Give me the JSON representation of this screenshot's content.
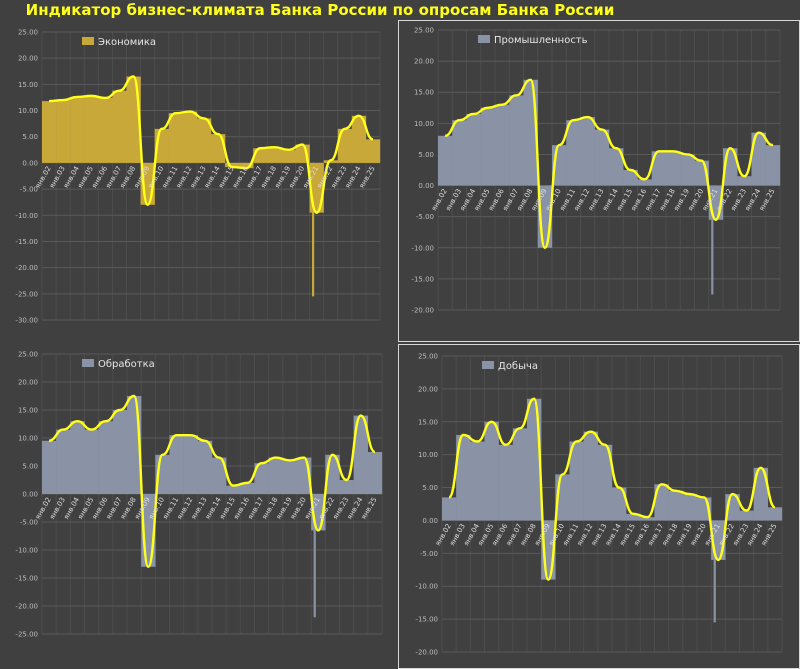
{
  "title": "Индикатор бизнес-климата Банка России по опросам Банка России",
  "colors": {
    "smooth": "#ffff1a",
    "axis_text": "#bcbcbc",
    "background": "#404040"
  },
  "chart_data": [
    {
      "type": "bar",
      "legend": "Экономика",
      "bar_color": "#c9a83a",
      "ylim": [
        -30,
        25
      ],
      "ytick_labels": [
        "25.00",
        "20.00",
        "15.00",
        "10.00",
        "5.00",
        "0.00",
        "-5.00",
        "-10.00",
        "-15.00",
        "-20.00",
        "-25.00",
        "-30.00"
      ],
      "categories": [
        "янв.02",
        "янв.03",
        "янв.04",
        "янв.05",
        "янв.06",
        "янв.07",
        "янв.08",
        "янв.09",
        "янв.10",
        "янв.11",
        "янв.12",
        "янв.13",
        "янв.14",
        "янв.15",
        "янв.16",
        "янв.17",
        "янв.18",
        "янв.19",
        "янв.20",
        "янв.21",
        "янв.22",
        "янв.23",
        "янв.24",
        "янв.25"
      ],
      "series": [
        {
          "name": "Экономика",
          "values": [
            11.8,
            12.0,
            12.6,
            12.8,
            12.4,
            13.8,
            16.5,
            -8.0,
            6.5,
            9.5,
            9.8,
            8.5,
            5.5,
            -0.8,
            -1.0,
            2.8,
            3.0,
            2.5,
            3.5,
            -9.5,
            0.5,
            6.5,
            9.0,
            4.5
          ]
        }
      ],
      "markers": [
        {
          "x": "янв.21",
          "value": -25.5
        }
      ]
    },
    {
      "type": "bar",
      "legend": "Промышленность",
      "bar_color": "#8a93a6",
      "ylim": [
        -20,
        25
      ],
      "ytick_labels": [
        "25.00",
        "20.00",
        "15.00",
        "10.00",
        "5.00",
        "0.00",
        "-5.00",
        "-10.00",
        "-15.00",
        "-20.00"
      ],
      "categories": [
        "янв.02",
        "янв.03",
        "янв.04",
        "янв.05",
        "янв.06",
        "янв.07",
        "янв.08",
        "янв.09",
        "янв.10",
        "янв.11",
        "янв.12",
        "янв.13",
        "янв.14",
        "янв.15",
        "янв.16",
        "янв.17",
        "янв.18",
        "янв.19",
        "янв.20",
        "янв.21",
        "янв.22",
        "янв.23",
        "янв.24",
        "янв.25"
      ],
      "series": [
        {
          "name": "Промышленность",
          "values": [
            8.0,
            10.5,
            11.5,
            12.5,
            13.0,
            14.5,
            17.0,
            -10.0,
            6.5,
            10.5,
            11.0,
            9.0,
            6.0,
            2.5,
            1.0,
            5.5,
            5.5,
            5.0,
            4.0,
            -5.5,
            6.0,
            1.5,
            8.5,
            6.5
          ]
        }
      ],
      "markers": [
        {
          "x": "янв.21",
          "value": -17.5
        }
      ]
    },
    {
      "type": "bar",
      "legend": "Обработка",
      "bar_color": "#8a93a6",
      "ylim": [
        -25,
        25
      ],
      "ytick_labels": [
        "25.00",
        "20.00",
        "15.00",
        "10.00",
        "5.00",
        "0.00",
        "-5.00",
        "-10.00",
        "-15.00",
        "-20.00",
        "-25.00"
      ],
      "categories": [
        "янв.02",
        "янв.03",
        "янв.04",
        "янв.05",
        "янв.06",
        "янв.07",
        "янв.08",
        "янв.09",
        "янв.10",
        "янв.11",
        "янв.12",
        "янв.13",
        "янв.14",
        "янв.15",
        "янв.16",
        "янв.17",
        "янв.18",
        "янв.19",
        "янв.20",
        "янв.21",
        "янв.22",
        "янв.23",
        "янв.24",
        "янв.25"
      ],
      "series": [
        {
          "name": "Обработка",
          "values": [
            9.5,
            11.5,
            13.0,
            11.5,
            13.0,
            15.0,
            17.5,
            -13.0,
            7.0,
            10.5,
            10.5,
            9.5,
            6.5,
            1.5,
            2.0,
            5.5,
            6.5,
            6.0,
            6.5,
            -6.5,
            7.0,
            2.5,
            14.0,
            7.5
          ]
        }
      ],
      "markers": [
        {
          "x": "янв.21",
          "value": -22.0
        }
      ]
    },
    {
      "type": "bar",
      "legend": "Добыча",
      "bar_color": "#8a93a6",
      "ylim": [
        -20,
        25
      ],
      "ytick_labels": [
        "25.00",
        "20.00",
        "15.00",
        "10.00",
        "5.00",
        "0.00",
        "-5.00",
        "-10.00",
        "-15.00",
        "-20.00"
      ],
      "categories": [
        "янв.02",
        "янв.03",
        "янв.04",
        "янв.05",
        "янв.06",
        "янв.07",
        "янв.08",
        "янв.09",
        "янв.10",
        "янв.11",
        "янв.12",
        "янв.13",
        "янв.14",
        "янв.15",
        "янв.16",
        "янв.17",
        "янв.18",
        "янв.19",
        "янв.20",
        "янв.21",
        "янв.22",
        "янв.23",
        "янв.24",
        "янв.25"
      ],
      "series": [
        {
          "name": "Добыча",
          "values": [
            3.5,
            13.0,
            12.0,
            15.0,
            11.5,
            14.0,
            18.5,
            -9.0,
            7.0,
            12.0,
            13.5,
            11.5,
            5.0,
            1.0,
            0.5,
            5.5,
            4.5,
            4.0,
            3.5,
            -6.0,
            4.0,
            1.5,
            8.0,
            2.0
          ]
        }
      ],
      "markers": [
        {
          "x": "янв.21",
          "value": -15.5
        }
      ]
    }
  ]
}
